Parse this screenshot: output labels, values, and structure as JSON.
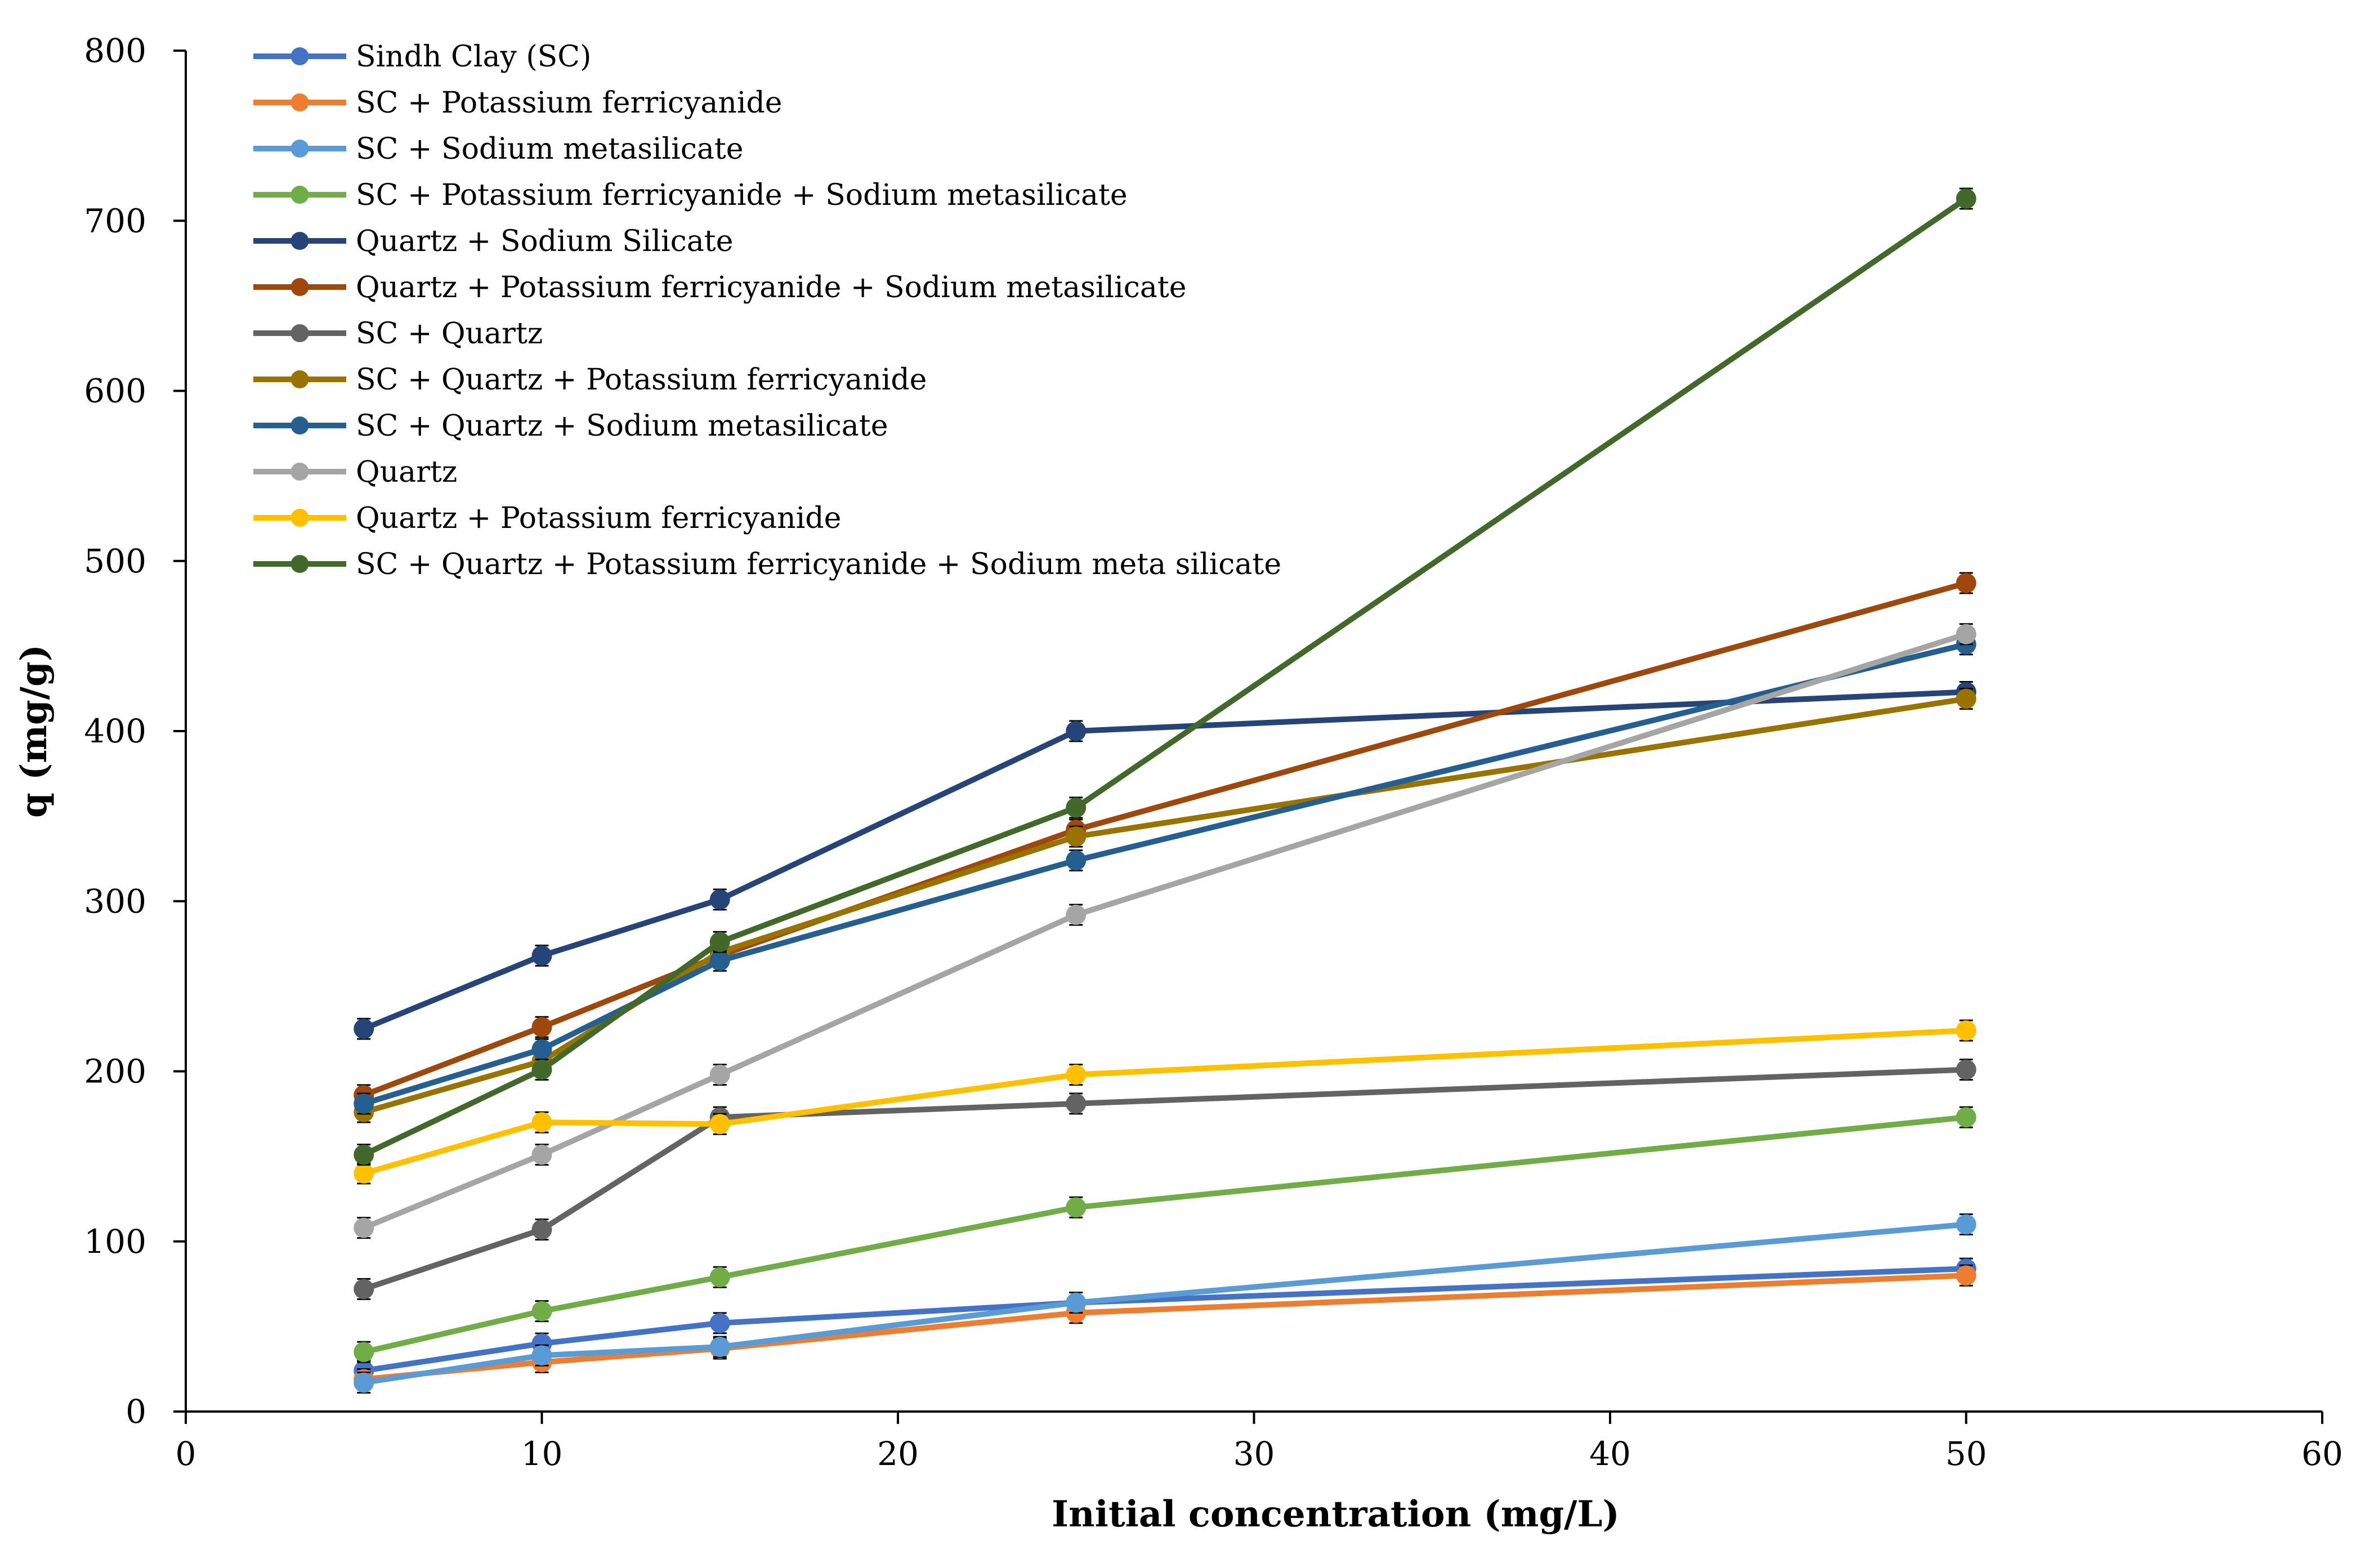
{
  "chart_data": {
    "type": "line",
    "title": "",
    "xlabel": "Initial  concentration (mg/L)",
    "ylabel": "q (mg/g)",
    "xlim": [
      0,
      60
    ],
    "ylim": [
      0,
      800
    ],
    "xticks": [
      0,
      10,
      20,
      30,
      40,
      50,
      60
    ],
    "yticks": [
      0,
      100,
      200,
      300,
      400,
      500,
      600,
      700,
      800
    ],
    "grid": false,
    "legend_position": "top-left",
    "error_bars": true,
    "x": [
      5,
      10,
      15,
      25,
      50
    ],
    "series": [
      {
        "name": "Sindh Clay (SC)",
        "color": "#4472c4",
        "values": [
          24,
          40,
          52,
          64,
          84
        ]
      },
      {
        "name": "SC + Potassium ferricyanide",
        "color": "#ed7d31",
        "values": [
          19,
          29,
          37,
          58,
          80
        ]
      },
      {
        "name": "SC + Sodium metasilicate",
        "color": "#5b9bd5",
        "values": [
          17,
          33,
          38,
          64,
          110
        ]
      },
      {
        "name": "SC + Potassium ferricyanide + Sodium metasilicate",
        "color": "#70ad47",
        "values": [
          35,
          59,
          79,
          120,
          173
        ]
      },
      {
        "name": "Quartz + Sodium Silicate",
        "color": "#264478",
        "values": [
          225,
          268,
          301,
          400,
          423
        ]
      },
      {
        "name": "Quartz + Potassium ferricyanide + Sodium metasilicate",
        "color": "#9e480e",
        "values": [
          186,
          226,
          268,
          342,
          487
        ]
      },
      {
        "name": "SC + Quartz",
        "color": "#636363",
        "values": [
          72,
          107,
          173,
          181,
          201
        ]
      },
      {
        "name": "SC + Quartz + Potassium ferricyanide",
        "color": "#997300",
        "values": [
          176,
          206,
          270,
          338,
          419
        ]
      },
      {
        "name": "SC + Quartz + Sodium metasilicate",
        "color": "#255e91",
        "values": [
          181,
          213,
          265,
          324,
          451
        ]
      },
      {
        "name": "Quartz",
        "color": "#a5a5a5",
        "values": [
          108,
          151,
          198,
          292,
          457
        ]
      },
      {
        "name": "Quartz + Potassium ferricyanide",
        "color": "#ffc000",
        "values": [
          140,
          170,
          169,
          198,
          224
        ]
      },
      {
        "name": "SC + Quartz + Potassium ferricyanide + Sodium meta silicate",
        "color": "#43682b",
        "values": [
          151,
          201,
          276,
          355,
          713
        ]
      }
    ]
  }
}
